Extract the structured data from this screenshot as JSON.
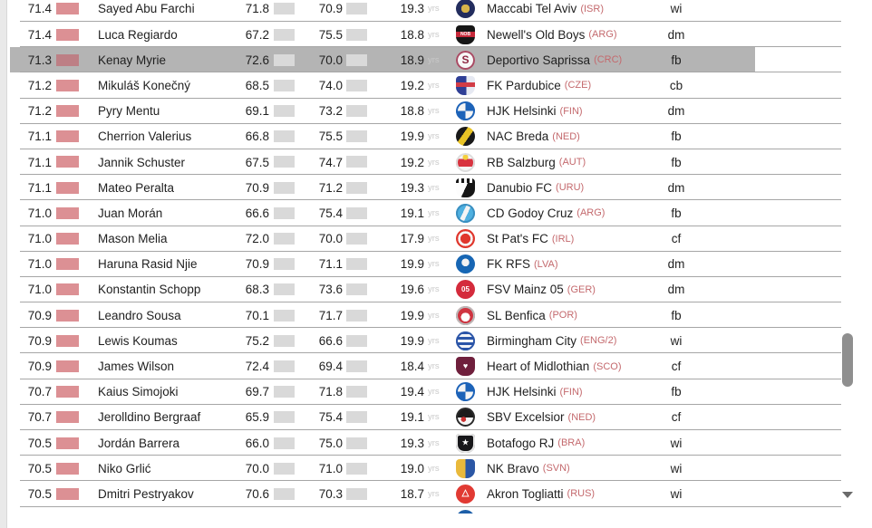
{
  "colors": {
    "highlight_row_bg": "#b4b4b4",
    "rating_bar": "#dc9094",
    "rating_bar_highlight": "#bd7f85",
    "stat_bar": "#d9d9d9",
    "country_code": "#c4696d",
    "row_divider": "#a6a6a6"
  },
  "age_suffix": "yrs",
  "rows": [
    {
      "rating": "71.4",
      "name": "Sayed Abu Farchi",
      "r2": "71.8",
      "r3": "70.9",
      "age": "19.3",
      "club": "Maccabi Tel Aviv",
      "country": "(ISR)",
      "pos": "wi",
      "highlighted": false,
      "badge": {
        "shape": "circle",
        "bg": "radial-gradient(circle at 50% 50%, #d7b44a 0 31%, #232d5e 32%)"
      }
    },
    {
      "rating": "71.4",
      "name": "Luca Regiardo",
      "r2": "67.2",
      "r3": "75.5",
      "age": "18.8",
      "club": "Newell's Old Boys",
      "country": "(ARG)",
      "pos": "dm",
      "highlighted": false,
      "badge": {
        "shape": "shield",
        "bg": "linear-gradient(180deg,#161616 0 34%,#c6293a 34% 62%,#161616 62%)",
        "text": "NOB",
        "text_color": "#ffffff",
        "text_size": 5
      }
    },
    {
      "rating": "71.3",
      "name": "Kenay Myrie",
      "r2": "72.6",
      "r3": "70.0",
      "age": "18.9",
      "club": "Deportivo Saprissa",
      "country": "(CRC)",
      "pos": "fb",
      "highlighted": true,
      "badge": {
        "shape": "circle",
        "bg": "#f7f7f7",
        "ring": "#a84a63",
        "text": "S",
        "text_color": "#8e2742",
        "text_size": 12
      }
    },
    {
      "rating": "71.2",
      "name": "Mikuláš Konečný",
      "r2": "68.5",
      "r3": "74.0",
      "age": "19.2",
      "club": "FK Pardubice",
      "country": "(CZE)",
      "pos": "cb",
      "highlighted": false,
      "badge": {
        "shape": "shield",
        "bg": "linear-gradient(180deg, rgba(0,0,0,0) 0 34%, #d23c46 34% 58%, rgba(0,0,0,0) 58%), linear-gradient(90deg,#2f3f96 0 55%,#e6e9f2 55%)"
      }
    },
    {
      "rating": "71.2",
      "name": "Pyry Mentu",
      "r2": "69.1",
      "r3": "73.2",
      "age": "18.8",
      "club": "HJK Helsinki",
      "country": "(FIN)",
      "pos": "dm",
      "highlighted": false,
      "badge": {
        "shape": "circle",
        "bg": "conic-gradient(#1d63b8 0 25%, #f5f5f5 0 50%, #1d63b8 0 75%, #f5f5f5 0)",
        "ring": "#1d63b8"
      }
    },
    {
      "rating": "71.1",
      "name": "Cherrion Valerius",
      "r2": "66.8",
      "r3": "75.5",
      "age": "19.9",
      "club": "NAC Breda",
      "country": "(NED)",
      "pos": "fb",
      "highlighted": false,
      "badge": {
        "shape": "circle",
        "bg": "linear-gradient(125deg,#191919 0 38%,#e8c325 38% 62%,#191919 62%)"
      }
    },
    {
      "rating": "71.1",
      "name": "Jannik Schuster",
      "r2": "67.5",
      "r3": "74.7",
      "age": "19.2",
      "club": "RB Salzburg",
      "country": "(AUT)",
      "pos": "fb",
      "highlighted": false,
      "badge": {
        "shape": "circle",
        "bg": "radial-gradient(circle at 50% 22%, #f3cf3e 0 15%, rgba(0,0,0,0) 16%), linear-gradient(180deg,#f6f6f6 0 32%,#d8333f 32% 72%,#f6f6f6 72%)",
        "ring": "#dddddd"
      }
    },
    {
      "rating": "71.1",
      "name": "Mateo Peralta",
      "r2": "70.9",
      "r3": "71.2",
      "age": "19.3",
      "club": "Danubio FC",
      "country": "(URU)",
      "pos": "dm",
      "highlighted": false,
      "badge": {
        "shape": "shield",
        "bg": "repeating-linear-gradient(90deg,#161616 0 3px,#f5f5f5 3px 6px) top/100% 5px no-repeat, linear-gradient(115deg,#fdfdfd 0 50%,#161616 50%) center/100% 100% no-repeat"
      }
    },
    {
      "rating": "71.0",
      "name": "Juan Morán",
      "r2": "66.6",
      "r3": "75.4",
      "age": "19.1",
      "club": "CD Godoy Cruz",
      "country": "(ARG)",
      "pos": "fb",
      "highlighted": false,
      "badge": {
        "shape": "circle",
        "bg": "linear-gradient(115deg,#4fb0e0 0 40%,#f4f4f4 40% 58%,#4fb0e0 58%)",
        "ring": "#3a8fc0"
      }
    },
    {
      "rating": "71.0",
      "name": "Mason Melia",
      "r2": "72.0",
      "r3": "70.0",
      "age": "17.9",
      "club": "St Pat's FC",
      "country": "(IRL)",
      "pos": "cf",
      "highlighted": false,
      "badge": {
        "shape": "circle",
        "bg": "radial-gradient(circle,#e0372d 0 37%,#f7f7f7 38% 55%,#e0372d 56%)"
      }
    },
    {
      "rating": "71.0",
      "name": "Haruna Rasid Njie",
      "r2": "70.9",
      "r3": "71.1",
      "age": "19.9",
      "club": "FK RFS",
      "country": "(LVA)",
      "pos": "dm",
      "highlighted": false,
      "badge": {
        "shape": "circle",
        "bg": "radial-gradient(circle at 50% 42%,#f2f2f2 0 26%,#1766b4 27%)"
      }
    },
    {
      "rating": "71.0",
      "name": "Konstantin Schopp",
      "r2": "68.3",
      "r3": "73.6",
      "age": "19.6",
      "club": "FSV Mainz 05",
      "country": "(GER)",
      "pos": "dm",
      "highlighted": false,
      "badge": {
        "shape": "circle",
        "bg": "#d42b3c",
        "text": "05",
        "text_color": "#ffffff",
        "text_size": 8
      }
    },
    {
      "rating": "70.9",
      "name": "Leandro Sousa",
      "r2": "70.1",
      "r3": "71.7",
      "age": "19.9",
      "club": "SL Benfica",
      "country": "(POR)",
      "pos": "fb",
      "highlighted": false,
      "badge": {
        "shape": "circle",
        "bg": "radial-gradient(circle at 50% 58%,#fdfdfd 0 30%,#cf3440 31%)",
        "ring": "#b9b9b9"
      }
    },
    {
      "rating": "70.9",
      "name": "Lewis Koumas",
      "r2": "75.2",
      "r3": "66.6",
      "age": "19.9",
      "club": "Birmingham City",
      "country": "(ENG/2)",
      "pos": "wi",
      "highlighted": false,
      "badge": {
        "shape": "circle",
        "bg": "repeating-linear-gradient(0deg,#2b55a8 0 3px,#f2f4f8 3px 6px)",
        "ring": "#2b55a8"
      }
    },
    {
      "rating": "70.9",
      "name": "James Wilson",
      "r2": "72.4",
      "r3": "69.4",
      "age": "18.4",
      "club": "Heart of Midlothian",
      "country": "(SCO)",
      "pos": "cf",
      "highlighted": false,
      "badge": {
        "shape": "shield",
        "bg": "#6f1f3c",
        "text": "♥",
        "text_color": "#ffffff",
        "text_size": 9
      }
    },
    {
      "rating": "70.7",
      "name": "Kaius Simojoki",
      "r2": "69.7",
      "r3": "71.8",
      "age": "19.4",
      "club": "HJK Helsinki",
      "country": "(FIN)",
      "pos": "fb",
      "highlighted": false,
      "badge": {
        "shape": "circle",
        "bg": "conic-gradient(#1d63b8 0 25%, #f5f5f5 0 50%, #1d63b8 0 75%, #f5f5f5 0)",
        "ring": "#1d63b8"
      }
    },
    {
      "rating": "70.7",
      "name": "Jerolldino Bergraaf",
      "r2": "65.9",
      "r3": "75.4",
      "age": "19.1",
      "club": "SBV Excelsior",
      "country": "(NED)",
      "pos": "cf",
      "highlighted": false,
      "badge": {
        "shape": "circle",
        "bg": "radial-gradient(circle at 40% 62%,#cc3333 0 15%, rgba(0,0,0,0) 16%), linear-gradient(180deg,#1c1c1c 0 52%,#f6f6f6 52%)",
        "ring": "#2a2a2a"
      }
    },
    {
      "rating": "70.5",
      "name": "Jordán Barrera",
      "r2": "66.0",
      "r3": "75.0",
      "age": "19.3",
      "club": "Botafogo RJ",
      "country": "(BRA)",
      "pos": "wi",
      "highlighted": false,
      "badge": {
        "shape": "shield",
        "bg": "#17171a",
        "ring": "#e8e8e8",
        "text": "★",
        "text_color": "#ffffff",
        "text_size": 8
      }
    },
    {
      "rating": "70.5",
      "name": "Niko Grlić",
      "r2": "70.0",
      "r3": "71.0",
      "age": "19.0",
      "club": "NK Bravo",
      "country": "(SVN)",
      "pos": "wi",
      "highlighted": false,
      "badge": {
        "shape": "shield",
        "bg": "linear-gradient(90deg,#e9b93b 0 50%,#2b57a5 50%)"
      }
    },
    {
      "rating": "70.5",
      "name": "Dmitri Pestryakov",
      "r2": "70.6",
      "r3": "70.3",
      "age": "18.7",
      "club": "Akron Togliatti",
      "country": "(RUS)",
      "pos": "wi",
      "highlighted": false,
      "badge": {
        "shape": "circle",
        "bg": "#e13a33",
        "text": "△",
        "text_color": "#ffffff",
        "text_size": 10
      }
    }
  ],
  "partial_row": {
    "badge": {
      "shape": "circle",
      "bg": "#1d5fa8"
    }
  }
}
